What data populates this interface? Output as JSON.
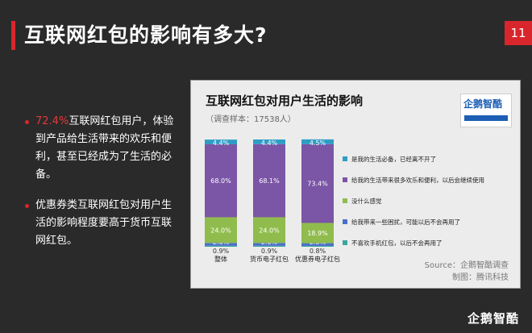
{
  "slide": {
    "title": "互联网红包的影响有多大?",
    "page_number": "11",
    "brand": "企鹅智酷"
  },
  "bullets": [
    {
      "highlight": "72.4%",
      "text": "互联网红包用户，体验到产品给生活带来的欢乐和便利，甚至已经成为了生活的必备。"
    },
    {
      "highlight": "",
      "text": "优惠券类互联网红包对用户生活的影响程度要高于货币互联网红包。"
    }
  ],
  "chart_data": {
    "type": "bar",
    "stacked": true,
    "percent": true,
    "title": "互联网红包对用户生活的影响",
    "subtitle": "（调查样本：17538人）",
    "categories": [
      "整体",
      "货币电子红包",
      "优惠券电子红包"
    ],
    "series": [
      {
        "name": "不喜欢手机红包，以后不会再用了",
        "color": "#3aa6a0",
        "values": [
          0.9,
          0.9,
          0.8
        ]
      },
      {
        "name": "给我带来一些困扰，可能以后不会再用了",
        "color": "#4a6fc9",
        "values": [
          2.6,
          2.6,
          2.5
        ]
      },
      {
        "name": "没什么感觉",
        "color": "#8fbc4c",
        "values": [
          24.0,
          24.0,
          18.9
        ]
      },
      {
        "name": "给我的生活带来很多欢乐和便利，以后会继续使用",
        "color": "#7b55a6",
        "values": [
          68.0,
          68.1,
          73.4
        ]
      },
      {
        "name": "是我的生活必备，已经离不开了",
        "color": "#2f9cc4",
        "values": [
          4.4,
          4.4,
          4.5
        ]
      }
    ],
    "ylim": [
      0,
      100
    ],
    "legend_position": "right",
    "grid": false
  },
  "chart_footer": {
    "source": "Source：企鹅智酷调查",
    "made_by": "制图：腾讯科技"
  },
  "logo": {
    "name": "企鹅智酷"
  }
}
